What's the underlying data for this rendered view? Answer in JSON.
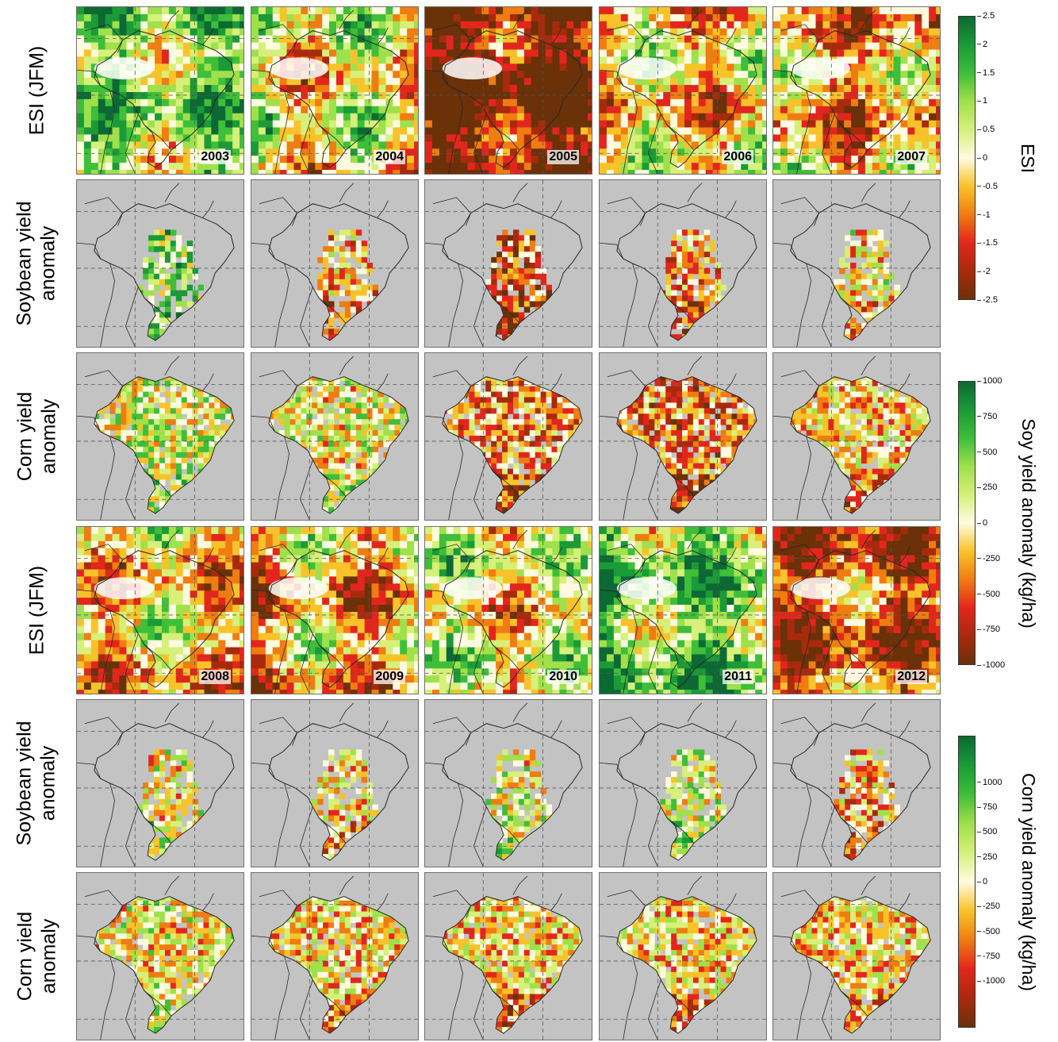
{
  "row_labels": [
    {
      "lines": [
        "ESI (JFM)"
      ]
    },
    {
      "lines": [
        "Soybean yield",
        "anomaly"
      ]
    },
    {
      "lines": [
        "Corn yield",
        "anomaly"
      ]
    },
    {
      "lines": [
        "ESI (JFM)"
      ]
    },
    {
      "lines": [
        "Soybean yield",
        "anomaly"
      ]
    },
    {
      "lines": [
        "Corn yield",
        "anomaly"
      ]
    }
  ],
  "years_top": [
    "2003",
    "2004",
    "2005",
    "2006",
    "2007"
  ],
  "years_bottom": [
    "2008",
    "2009",
    "2010",
    "2011",
    "2012"
  ],
  "colorbars": [
    {
      "title": "ESI",
      "ticks": [
        "2.5",
        "2",
        "1.5",
        "1",
        "0.5",
        "0",
        "-0.5",
        "-1",
        "-1.5",
        "-2",
        "-2.5"
      ]
    },
    {
      "title": "Soy yield anomaly (kg/ha)",
      "ticks": [
        "1000",
        "750",
        "500",
        "250",
        "0",
        "-250",
        "-500",
        "-750",
        "-1000"
      ]
    },
    {
      "title": "Corn yield anomaly (kg/ha)",
      "ticks": [
        "1000",
        "750",
        "500",
        "250",
        "0",
        "-250",
        "-500",
        "-750",
        "-1000"
      ]
    }
  ],
  "colors": {
    "ramp": [
      "#6b3108",
      "#a82a0c",
      "#e3261d",
      "#ef7d12",
      "#f8c32a",
      "#fffbe0",
      "#d6f07a",
      "#9fe04c",
      "#3fbe3a",
      "#1b9a38",
      "#0c6934"
    ],
    "no_data": "#c3c3c3",
    "boundary": "#262626"
  },
  "panel_kinds": [
    "esi",
    "yield",
    "yield",
    "esi",
    "yield",
    "yield"
  ],
  "panel_bias": [
    [
      0.35,
      0.0,
      -0.9,
      -0.1,
      -0.25
    ],
    [
      0.45,
      -0.25,
      -0.6,
      -0.35,
      -0.05
    ],
    [
      0.15,
      0.05,
      -0.4,
      -0.45,
      -0.15
    ],
    [
      -0.15,
      -0.25,
      0.0,
      0.45,
      -0.55
    ],
    [
      0.0,
      -0.1,
      0.05,
      0.15,
      -0.25
    ],
    [
      0.0,
      -0.1,
      -0.15,
      -0.1,
      -0.1
    ]
  ]
}
